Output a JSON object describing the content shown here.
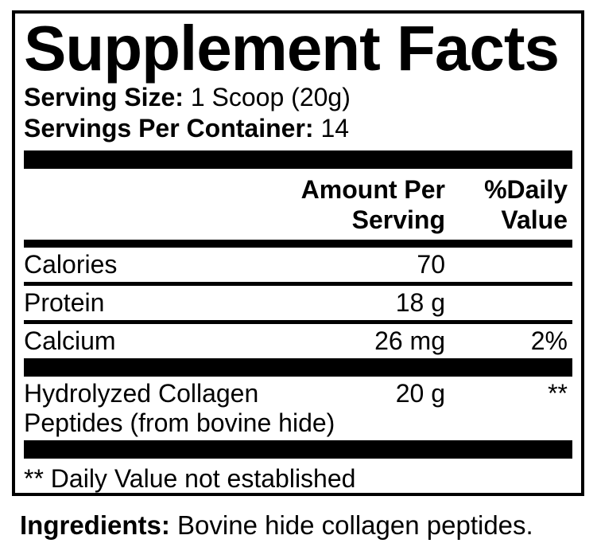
{
  "title": "Supplement Facts",
  "serving": {
    "size_label": "Serving Size:",
    "size_value": "1 Scoop (20g)",
    "per_container_label": "Servings Per Container:",
    "per_container_value": "14"
  },
  "header": {
    "amount_line1": "Amount Per",
    "amount_line2": "Serving",
    "dv_line1": "%Daily",
    "dv_line2": "Value"
  },
  "rows": [
    {
      "name": "Calories",
      "amount": "70",
      "dv": ""
    },
    {
      "name": "Protein",
      "amount": "18 g",
      "dv": ""
    },
    {
      "name": "Calcium",
      "amount": "26 mg",
      "dv": "2%"
    },
    {
      "name_lines": [
        "Hydrolyzed Collagen",
        "Peptides (from bovine hide)"
      ],
      "amount": "20 g",
      "dv": "**"
    }
  ],
  "footnote": "** Daily Value not established",
  "ingredients": {
    "label": "Ingredients:",
    "value": "Bovine hide collagen peptides."
  },
  "colors": {
    "text": "#000000",
    "background": "#ffffff",
    "bar": "#000000"
  }
}
